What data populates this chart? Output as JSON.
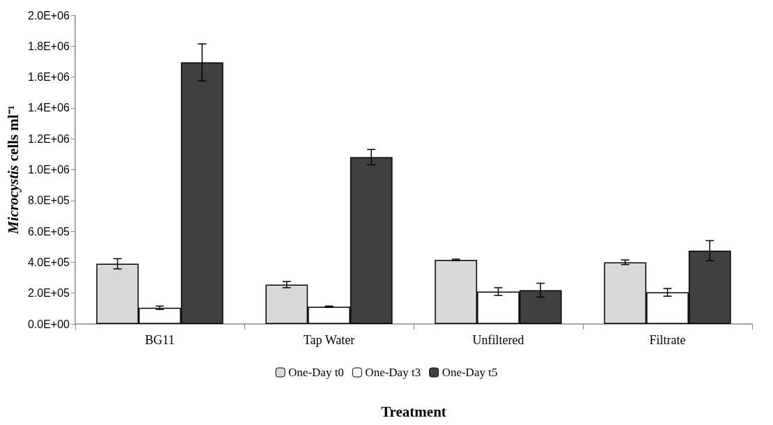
{
  "chart_data": {
    "type": "bar",
    "xlabel": "Treatment",
    "ylabel": "Microcystis cells ml⁻¹",
    "categories": [
      "BG11",
      "Tap Water",
      "Unfiltered",
      "Filtrate"
    ],
    "series": [
      {
        "name": "One-Day t0",
        "color": "#d9d9d9",
        "values": [
          390000,
          255000,
          415000,
          400000
        ],
        "errors": [
          33000,
          20000,
          5000,
          15000
        ]
      },
      {
        "name": "One-Day t3",
        "color": "#ffffff",
        "values": [
          105000,
          112000,
          210000,
          205000
        ],
        "errors": [
          11000,
          4000,
          25000,
          25000
        ]
      },
      {
        "name": "One-Day t5",
        "color": "#404040",
        "values": [
          1695000,
          1081000,
          219000,
          475000
        ],
        "errors": [
          120000,
          50000,
          45000,
          65000
        ]
      }
    ],
    "ylim": [
      0,
      2000000
    ],
    "yticks": [
      {
        "value": 0,
        "label": "0.0E+00"
      },
      {
        "value": 200000,
        "label": "2.0E+05"
      },
      {
        "value": 400000,
        "label": "4.0E+05"
      },
      {
        "value": 600000,
        "label": "6.0E+05"
      },
      {
        "value": 800000,
        "label": "8.0E+05"
      },
      {
        "value": 1000000,
        "label": "1.0E+06"
      },
      {
        "value": 1200000,
        "label": "1.2E+06"
      },
      {
        "value": 1400000,
        "label": "1.4E+06"
      },
      {
        "value": 1600000,
        "label": "1.6E+06"
      },
      {
        "value": 1800000,
        "label": "1.8E+06"
      },
      {
        "value": 2000000,
        "label": "2.0E+06"
      }
    ],
    "grid": false,
    "legend": "bottom"
  }
}
